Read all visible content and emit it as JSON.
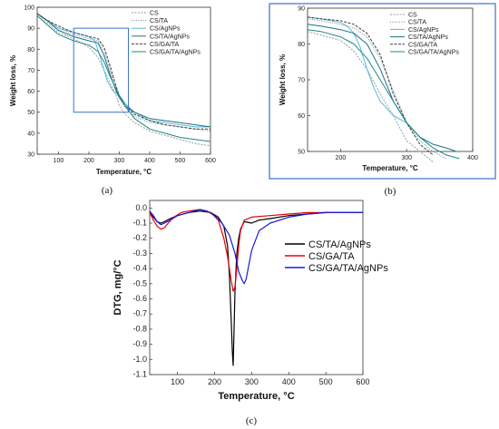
{
  "chart_data": [
    {
      "panel": "(a)",
      "type": "line",
      "xlabel": "Temperature, °C",
      "ylabel": "Weight loss, %",
      "xlim": [
        30,
        600
      ],
      "ylim": [
        30,
        100
      ],
      "xticks": [
        100,
        200,
        300,
        400,
        500,
        600
      ],
      "yticks": [
        30,
        40,
        50,
        60,
        70,
        80,
        90,
        100
      ],
      "legend_placement": "top-right",
      "zoom_box": {
        "x": [
          150,
          330
        ],
        "y": [
          50,
          90
        ]
      },
      "series": [
        {
          "name": "CS",
          "color": "#9a9a9a",
          "dash": "2,1.5",
          "x": [
            30,
            60,
            100,
            150,
            200,
            230,
            250,
            270,
            290,
            300,
            320,
            350,
            400,
            450,
            500,
            550,
            600
          ],
          "y": [
            97,
            93,
            88,
            85,
            81,
            76,
            70,
            64,
            58,
            53,
            49,
            45,
            41,
            39,
            37,
            35,
            34
          ]
        },
        {
          "name": "CS/TA",
          "color": "#6c8a8e",
          "dash": "1,1.5",
          "x": [
            30,
            60,
            100,
            150,
            200,
            230,
            250,
            270,
            290,
            300,
            320,
            350,
            400,
            450,
            500,
            550,
            600
          ],
          "y": [
            97,
            94,
            90,
            87,
            85,
            84,
            79,
            70,
            62,
            57,
            52,
            48,
            45,
            44,
            43,
            42,
            41
          ]
        },
        {
          "name": "CS/AgNPs",
          "color": "#58b9d8",
          "dash": "",
          "x": [
            30,
            60,
            100,
            150,
            200,
            220,
            240,
            260,
            280,
            300,
            320,
            350,
            400,
            450,
            500,
            550,
            600
          ],
          "y": [
            97,
            94,
            90,
            88,
            86,
            84,
            75,
            65,
            60,
            58,
            54,
            50,
            46,
            45,
            44,
            43,
            43
          ]
        },
        {
          "name": "CS/TA/AgNPs",
          "color": "#1c6f8a",
          "dash": "",
          "x": [
            30,
            60,
            100,
            150,
            200,
            230,
            250,
            270,
            290,
            300,
            320,
            350,
            400,
            450,
            500,
            550,
            600
          ],
          "y": [
            97,
            94,
            89,
            86,
            84,
            83,
            77,
            68,
            60,
            57,
            53,
            50,
            47,
            46,
            45,
            44,
            43
          ]
        },
        {
          "name": "CS/GA/TA",
          "color": "#3b3b3b",
          "dash": "3,1.5",
          "x": [
            30,
            60,
            100,
            150,
            200,
            230,
            250,
            270,
            290,
            300,
            320,
            350,
            400,
            450,
            500,
            550,
            600
          ],
          "y": [
            97,
            94,
            91,
            88,
            86,
            85,
            81,
            72,
            62,
            58,
            53,
            49,
            46,
            44,
            43,
            42,
            42
          ]
        },
        {
          "name": "CS/GA/TA/AgNPs",
          "color": "#1b8a84",
          "dash": "",
          "x": [
            30,
            60,
            100,
            150,
            200,
            230,
            250,
            270,
            290,
            300,
            320,
            350,
            400,
            450,
            500,
            550,
            600
          ],
          "y": [
            96,
            92,
            87,
            84,
            82,
            79,
            74,
            67,
            61,
            58,
            53,
            47,
            42,
            40,
            38,
            37,
            36
          ]
        }
      ]
    },
    {
      "panel": "(b)",
      "type": "line",
      "xlabel": "Temperature, °C",
      "ylabel": "Weight loss, %",
      "xlim": [
        150,
        400
      ],
      "ylim": [
        50,
        90
      ],
      "xticks": [
        200,
        300,
        400
      ],
      "yticks": [
        50,
        60,
        70,
        80,
        90
      ],
      "legend_placement": "top-right",
      "series": [
        {
          "name": "CS",
          "color": "#9a9a9a",
          "dash": "2,1.5",
          "x": [
            150,
            170,
            200,
            220,
            240,
            260,
            280,
            300,
            320,
            340
          ],
          "y": [
            83.5,
            82.5,
            81,
            78,
            73,
            66,
            60,
            53,
            50,
            47
          ]
        },
        {
          "name": "CS/TA",
          "color": "#6c8a8e",
          "dash": "1,1.5",
          "x": [
            150,
            170,
            200,
            220,
            240,
            260,
            280,
            300,
            320,
            340,
            360
          ],
          "y": [
            87,
            86.5,
            85.5,
            84.5,
            82,
            76,
            67,
            58,
            53,
            50,
            48
          ]
        },
        {
          "name": "CS/AgNPs",
          "color": "#58b9d8",
          "dash": "",
          "x": [
            150,
            170,
            200,
            210,
            220,
            230,
            240,
            250,
            260,
            280,
            300,
            320,
            340
          ],
          "y": [
            87.5,
            87,
            86,
            85,
            83,
            79,
            73,
            68,
            64,
            60,
            58,
            54,
            51
          ]
        },
        {
          "name": "CS/TA/AgNPs",
          "color": "#1c6f8a",
          "dash": "",
          "x": [
            150,
            170,
            200,
            220,
            240,
            260,
            280,
            300,
            320,
            340,
            360,
            375
          ],
          "y": [
            85.5,
            85,
            84,
            83,
            80,
            73,
            64,
            58,
            54,
            52,
            51,
            50
          ]
        },
        {
          "name": "CS/GA/TA",
          "color": "#3b3b3b",
          "dash": "3,1.5",
          "x": [
            150,
            170,
            200,
            220,
            240,
            260,
            280,
            300,
            320,
            340
          ],
          "y": [
            87.5,
            87,
            86.5,
            85.5,
            83,
            77,
            66,
            58,
            52,
            49
          ]
        },
        {
          "name": "CS/GA/TA/AgNPs",
          "color": "#1b8a84",
          "dash": "",
          "x": [
            150,
            170,
            200,
            220,
            240,
            260,
            280,
            300,
            320,
            340,
            360,
            380
          ],
          "y": [
            84,
            83.5,
            82,
            80,
            76,
            70,
            64,
            58,
            54,
            51,
            49,
            48
          ]
        }
      ]
    },
    {
      "panel": "(c)",
      "type": "line",
      "xlabel": "Temperature, °C",
      "ylabel": "DTG, mg/°C",
      "xlim": [
        25,
        600
      ],
      "ylim": [
        -1.1,
        0.05
      ],
      "xticks": [
        100,
        200,
        300,
        400,
        500,
        600
      ],
      "yticks": [
        0.0,
        -0.1,
        -0.2,
        -0.3,
        -0.4,
        -0.5,
        -0.6,
        -0.7,
        -0.8,
        -0.9,
        -1.0,
        -1.1
      ],
      "ytick_labels": [
        "0.0",
        "-0.1",
        "-0.2",
        "-0.3",
        "-0.4",
        "-0.5",
        "-0.6",
        "-0.7",
        "-0.8",
        "-0.9",
        "-1.0",
        "-1.1"
      ],
      "legend_placement": "center-right",
      "series": [
        {
          "name": "CS/TA/AgNPs",
          "color": "#000000",
          "x": [
            25,
            35,
            45,
            55,
            65,
            80,
            100,
            130,
            160,
            190,
            210,
            225,
            235,
            240,
            245,
            248,
            250,
            252,
            255,
            260,
            265,
            270,
            280,
            300,
            320,
            350,
            400,
            450,
            500,
            550,
            600
          ],
          "y": [
            -0.03,
            -0.06,
            -0.09,
            -0.1,
            -0.09,
            -0.07,
            -0.05,
            -0.03,
            -0.02,
            -0.03,
            -0.06,
            -0.12,
            -0.25,
            -0.45,
            -0.75,
            -0.95,
            -1.04,
            -0.85,
            -0.55,
            -0.3,
            -0.2,
            -0.14,
            -0.09,
            -0.1,
            -0.08,
            -0.07,
            -0.05,
            -0.04,
            -0.03,
            -0.03,
            -0.03
          ]
        },
        {
          "name": "CS/GA/TA",
          "color": "#e8000b",
          "x": [
            25,
            35,
            45,
            55,
            65,
            75,
            90,
            110,
            130,
            160,
            190,
            210,
            225,
            235,
            245,
            250,
            255,
            260,
            265,
            270,
            280,
            300,
            350,
            400,
            450,
            500,
            550,
            600
          ],
          "y": [
            -0.03,
            -0.08,
            -0.12,
            -0.14,
            -0.13,
            -0.1,
            -0.06,
            -0.03,
            -0.02,
            -0.01,
            -0.03,
            -0.08,
            -0.2,
            -0.32,
            -0.48,
            -0.55,
            -0.52,
            -0.4,
            -0.25,
            -0.15,
            -0.08,
            -0.06,
            -0.05,
            -0.04,
            -0.03,
            -0.03,
            -0.03,
            -0.03
          ]
        },
        {
          "name": "CS/GA/TA/AgNPs",
          "color": "#1a1adb",
          "x": [
            25,
            35,
            45,
            55,
            65,
            80,
            100,
            130,
            160,
            180,
            200,
            220,
            240,
            255,
            265,
            275,
            280,
            285,
            292,
            300,
            320,
            350,
            400,
            450,
            500,
            550,
            600
          ],
          "y": [
            -0.02,
            -0.05,
            -0.09,
            -0.11,
            -0.1,
            -0.08,
            -0.05,
            -0.03,
            -0.01,
            -0.02,
            -0.05,
            -0.1,
            -0.18,
            -0.3,
            -0.42,
            -0.48,
            -0.5,
            -0.47,
            -0.38,
            -0.28,
            -0.15,
            -0.1,
            -0.06,
            -0.04,
            -0.03,
            -0.03,
            -0.03
          ]
        }
      ]
    }
  ]
}
